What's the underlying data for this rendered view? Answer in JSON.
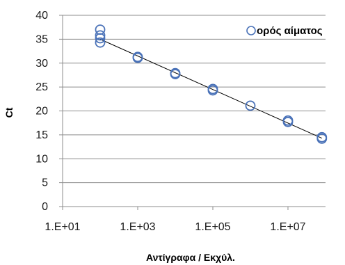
{
  "chart_data": {
    "type": "scatter",
    "xlabel": "Αντίγραφα / Εκχύλ.",
    "ylabel": "Ct",
    "x_scale": "log",
    "xlim": [
      10,
      100000000
    ],
    "ylim": [
      0,
      40
    ],
    "x_ticks": [
      10,
      1000,
      100000,
      10000000
    ],
    "x_tick_labels": [
      "1.E+01",
      "1.E+03",
      "1.E+05",
      "1.E+07"
    ],
    "y_ticks": [
      0,
      5,
      10,
      15,
      20,
      25,
      30,
      35,
      40
    ],
    "y_tick_labels": [
      "0",
      "5",
      "10",
      "15",
      "20",
      "25",
      "30",
      "35",
      "40"
    ],
    "grid": "horizontal",
    "legend_position": "top-right",
    "series": [
      {
        "name": "ορός αίματος",
        "marker": "open-circle",
        "color": "#4a72b8",
        "points": [
          {
            "x": 100,
            "y": 37.0
          },
          {
            "x": 100,
            "y": 35.8
          },
          {
            "x": 100,
            "y": 35.2
          },
          {
            "x": 100,
            "y": 34.3
          },
          {
            "x": 1000,
            "y": 31.3
          },
          {
            "x": 1000,
            "y": 31.1
          },
          {
            "x": 10000,
            "y": 27.9
          },
          {
            "x": 10000,
            "y": 27.7
          },
          {
            "x": 100000,
            "y": 24.6
          },
          {
            "x": 100000,
            "y": 24.3
          },
          {
            "x": 1000000,
            "y": 21.1
          },
          {
            "x": 10000000,
            "y": 18.0
          },
          {
            "x": 10000000,
            "y": 17.7
          },
          {
            "x": 80000000,
            "y": 14.5
          },
          {
            "x": 80000000,
            "y": 14.2
          }
        ]
      }
    ],
    "trendline": {
      "x": [
        100,
        80000000
      ],
      "y": [
        35.0,
        14.3
      ],
      "color": "#000000"
    }
  }
}
